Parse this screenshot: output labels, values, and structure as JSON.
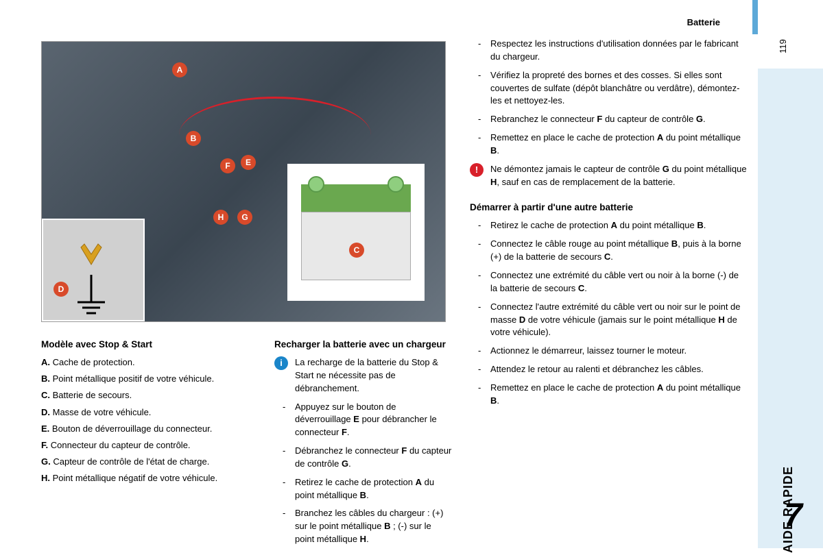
{
  "header": {
    "title": "Batterie",
    "pageNumber": "119"
  },
  "sidebar": {
    "label": "AIDE RAPIDE",
    "chapter": "7"
  },
  "diagram": {
    "labels": [
      "A",
      "B",
      "C",
      "D",
      "E",
      "F",
      "G",
      "H"
    ],
    "terminalPlus": "+",
    "terminalMinus": "−",
    "label_color": "#d84a2a",
    "cable_red": "#d8202a",
    "battery_green": "#6aa84f"
  },
  "legend": {
    "heading": "Modèle avec Stop & Start",
    "items": [
      {
        "key": "A.",
        "text": "Cache de protection."
      },
      {
        "key": "B.",
        "text": "Point métallique positif de votre véhicule."
      },
      {
        "key": "C.",
        "text": "Batterie de secours."
      },
      {
        "key": "D.",
        "text": "Masse de votre véhicule."
      },
      {
        "key": "E.",
        "text": "Bouton de déverrouillage du connecteur."
      },
      {
        "key": "F.",
        "text": "Connecteur du capteur de contrôle."
      },
      {
        "key": "G.",
        "text": "Capteur de contrôle de l'état de charge."
      },
      {
        "key": "H.",
        "text": "Point métallique négatif de votre véhicule."
      }
    ]
  },
  "recharge": {
    "heading": "Recharger la batterie avec un chargeur",
    "info": "La recharge de la batterie du Stop & Start ne nécessite pas de débranchement.",
    "steps": [
      "Appuyez sur le bouton de déverrouillage <b>E</b> pour débrancher le connecteur <b>F</b>.",
      "Débranchez le connecteur <b>F</b> du capteur de contrôle <b>G</b>.",
      "Retirez le cache de protection <b>A</b> du point métallique <b>B</b>.",
      "Branchez les câbles du chargeur : (+) sur le point métallique <b>B</b> ; (-) sur le point métallique <b>H</b>."
    ]
  },
  "col3top": {
    "steps": [
      "Respectez les instructions d'utilisation données par le fabricant du chargeur.",
      "Vérifiez la propreté des bornes et des cosses. Si elles sont couvertes de sulfate (dépôt blanchâtre ou verdâtre), démontez-les et nettoyez-les.",
      "Rebranchez le connecteur <b>F</b> du capteur de contrôle <b>G</b>.",
      "Remettez en place le cache de protection <b>A</b> du point métallique <b>B</b>."
    ],
    "warning": "Ne démontez jamais le capteur de contrôle <b>G</b> du point métallique <b>H</b>, sauf en cas de remplacement de la batterie."
  },
  "jumpstart": {
    "heading": "Démarrer à partir d'une autre batterie",
    "steps": [
      "Retirez le cache de protection <b>A</b> du point métallique <b>B</b>.",
      "Connectez le câble rouge au point métallique <b>B</b>, puis à la borne (+) de la batterie de secours <b>C</b>.",
      "Connectez une extrémité du câble vert ou noir à la borne (-) de la batterie de secours <b>C</b>.",
      "Connectez l'autre extrémité du câble vert ou noir sur le point de masse <b>D</b> de votre véhicule (jamais sur le point métallique <b>H</b> de votre véhicule).",
      "Actionnez le démarreur, laissez tourner le moteur.",
      "Attendez le retour au ralenti et débranchez les câbles.",
      "Remettez en place le cache de protection <b>A</b> du point métallique <b>B</b>."
    ]
  }
}
